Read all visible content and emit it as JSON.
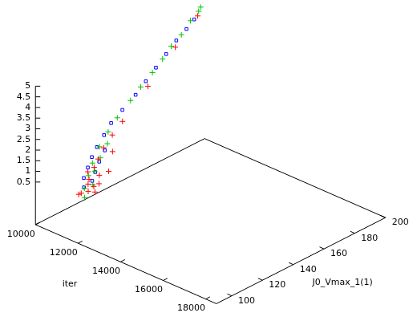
{
  "chart_data": {
    "type": "scatter3d",
    "xlabel": "iter",
    "ylabel": "J0_Vmax_1(1)",
    "xlim": [
      10000,
      18500
    ],
    "xticks": [
      10000,
      12000,
      14000,
      16000,
      18000
    ],
    "ylim": [
      90,
      200
    ],
    "yticks": [
      100,
      120,
      140,
      160,
      180,
      200
    ],
    "zlim": [
      -1.5,
      5
    ],
    "zticks": [
      0.5,
      1,
      1.5,
      2,
      2.5,
      3,
      3.5,
      4,
      4.5,
      5
    ],
    "grid": false,
    "series": [
      {
        "color": "#ff0000",
        "marker": "plus",
        "x": [
          11600,
          11900,
          11500,
          11750,
          12000,
          11650,
          11800,
          11450,
          11900,
          11600,
          11700,
          11500,
          11850,
          11400,
          11600,
          11300,
          11200,
          10950,
          10650,
          10400
        ],
        "y": [
          96,
          98,
          99,
          100,
          101,
          102,
          103,
          104,
          105,
          106,
          108,
          110,
          112,
          115,
          118,
          122,
          130,
          150,
          172,
          190
        ],
        "z": [
          0.4,
          0.6,
          0.3,
          0.8,
          0.5,
          0.9,
          0.6,
          1.1,
          0.7,
          1.3,
          0.9,
          1.5,
          1.0,
          1.8,
          1.6,
          2.1,
          2.4,
          3.2,
          4.1,
          4.8
        ]
      },
      {
        "color": "#00c000",
        "marker": "plus",
        "x": [
          11800,
          11650,
          11900,
          11550,
          11700,
          11450,
          11600,
          11350,
          11500,
          11250,
          11100,
          11000,
          10900,
          10800,
          10700,
          10600,
          10500,
          10350,
          10300,
          10250
        ],
        "y": [
          97,
          99,
          101,
          103,
          105,
          107,
          110,
          113,
          116,
          120,
          128,
          138,
          146,
          155,
          163,
          170,
          178,
          186,
          192,
          194
        ],
        "z": [
          0.3,
          0.6,
          0.8,
          1.0,
          1.2,
          1.4,
          1.6,
          1.9,
          2.0,
          2.3,
          2.6,
          3.0,
          3.3,
          3.6,
          3.9,
          4.2,
          4.4,
          4.7,
          4.9,
          5.0
        ]
      },
      {
        "color": "#0000ff",
        "marker": "square",
        "x": [
          11700,
          11550,
          11800,
          11450,
          11650,
          11350,
          11550,
          11300,
          11450,
          11200,
          11100,
          11050,
          10950,
          10850,
          10750,
          10650,
          10550,
          10450,
          10380
        ],
        "y": [
          98,
          100,
          102,
          104,
          106,
          108,
          110,
          112,
          115,
          118,
          124,
          132,
          142,
          150,
          158,
          166,
          174,
          182,
          188
        ],
        "z": [
          0.7,
          1.0,
          0.9,
          1.3,
          1.1,
          1.6,
          1.4,
          1.9,
          1.7,
          2.2,
          2.5,
          2.8,
          3.1,
          3.4,
          3.7,
          4.0,
          4.3,
          4.5,
          4.7
        ]
      }
    ]
  }
}
